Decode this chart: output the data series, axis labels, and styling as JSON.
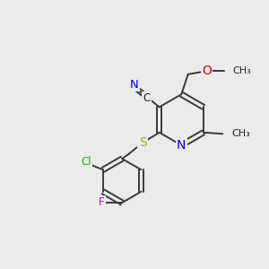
{
  "background_color": "#ebebeb",
  "bond_color": "#3a3a3a",
  "atom_colors": {
    "N": "#0000ee",
    "O": "#dd0000",
    "S": "#bbaa00",
    "Cl": "#00bb00",
    "F": "#cc00cc",
    "C": "#202020"
  },
  "font_size": 8.5,
  "figsize": [
    3.0,
    3.0
  ],
  "dpi": 100
}
